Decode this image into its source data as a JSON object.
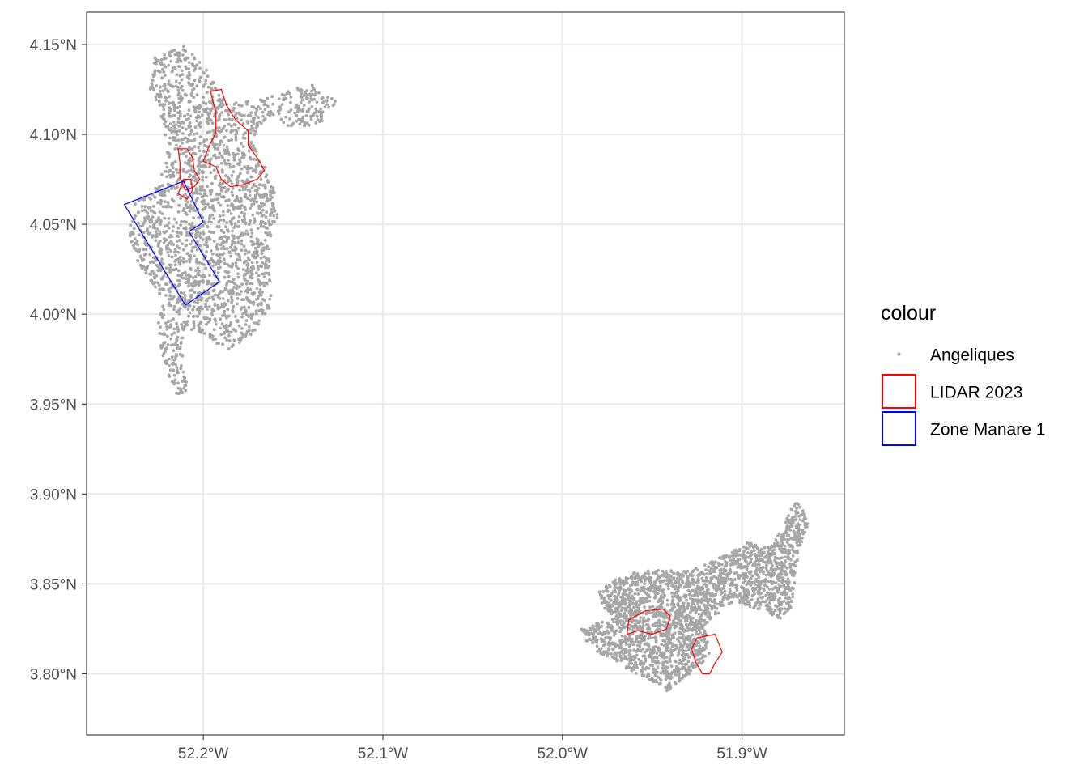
{
  "colors": {
    "points": "#a6a6a6",
    "lidar": "#ff0000",
    "zone": "#0000ff",
    "grid": "#ebebeb",
    "axis_text": "#4d4d4d"
  },
  "chart_data": {
    "type": "scatter",
    "subtype": "map",
    "grid": true,
    "legend_position": "right",
    "xlim": [
      -52.265,
      -51.843
    ],
    "ylim": [
      3.766,
      4.168
    ],
    "x_ticks": [
      {
        "value": -52.2,
        "label": "52.2°W"
      },
      {
        "value": -52.1,
        "label": "52.1°W"
      },
      {
        "value": -52.0,
        "label": "52.0°W"
      },
      {
        "value": -51.9,
        "label": "51.9°W"
      }
    ],
    "y_ticks": [
      {
        "value": 4.15,
        "label": "4.15°N"
      },
      {
        "value": 4.1,
        "label": "4.10°N"
      },
      {
        "value": 4.05,
        "label": "4.05°N"
      },
      {
        "value": 4.0,
        "label": "4.00°N"
      },
      {
        "value": 3.95,
        "label": "3.95°N"
      },
      {
        "value": 3.9,
        "label": "3.90°N"
      },
      {
        "value": 3.85,
        "label": "3.85°N"
      },
      {
        "value": 3.8,
        "label": "3.80°N"
      }
    ],
    "legend": {
      "title": "colour",
      "items": [
        {
          "label": "Angeliques",
          "kind": "point"
        },
        {
          "label": "LIDAR 2023",
          "kind": "red-outline"
        },
        {
          "label": "Zone Manare 1",
          "kind": "blue-outline"
        }
      ]
    },
    "series": [
      {
        "name": "Angeliques",
        "kind": "points",
        "clusters": [
          {
            "outline": [
              [
                -52.228,
                4.142
              ],
              [
                -52.212,
                4.15
              ],
              [
                -52.198,
                4.137
              ],
              [
                -52.19,
                4.12
              ],
              [
                -52.178,
                4.118
              ],
              [
                -52.16,
                4.122
              ],
              [
                -52.14,
                4.128
              ],
              [
                -52.125,
                4.118
              ],
              [
                -52.135,
                4.106
              ],
              [
                -52.15,
                4.103
              ],
              [
                -52.163,
                4.11
              ],
              [
                -52.172,
                4.098
              ],
              [
                -52.166,
                4.083
              ],
              [
                -52.16,
                4.068
              ],
              [
                -52.158,
                4.055
              ],
              [
                -52.163,
                4.04
              ],
              [
                -52.163,
                4.02
              ],
              [
                -52.162,
                4.005
              ],
              [
                -52.172,
                3.99
              ],
              [
                -52.185,
                3.98
              ],
              [
                -52.195,
                3.985
              ],
              [
                -52.208,
                3.992
              ],
              [
                -52.212,
                3.975
              ],
              [
                -52.208,
                3.958
              ],
              [
                -52.214,
                3.954
              ],
              [
                -52.218,
                3.962
              ],
              [
                -52.222,
                3.975
              ],
              [
                -52.226,
                3.992
              ],
              [
                -52.222,
                4.008
              ],
              [
                -52.236,
                4.027
              ],
              [
                -52.242,
                4.045
              ],
              [
                -52.238,
                4.062
              ],
              [
                -52.225,
                4.072
              ],
              [
                -52.22,
                4.088
              ],
              [
                -52.222,
                4.106
              ],
              [
                -52.23,
                4.125
              ]
            ],
            "count": 2400
          },
          {
            "outline": [
              [
                -51.972,
                3.852
              ],
              [
                -51.955,
                3.858
              ],
              [
                -51.93,
                3.857
              ],
              [
                -51.91,
                3.866
              ],
              [
                -51.897,
                3.873
              ],
              [
                -51.884,
                3.87
              ],
              [
                -51.878,
                3.88
              ],
              [
                -51.87,
                3.897
              ],
              [
                -51.862,
                3.885
              ],
              [
                -51.868,
                3.87
              ],
              [
                -51.87,
                3.857
              ],
              [
                -51.872,
                3.838
              ],
              [
                -51.878,
                3.83
              ],
              [
                -51.888,
                3.835
              ],
              [
                -51.905,
                3.84
              ],
              [
                -51.92,
                3.828
              ],
              [
                -51.918,
                3.81
              ],
              [
                -51.928,
                3.8
              ],
              [
                -51.942,
                3.79
              ],
              [
                -51.952,
                3.796
              ],
              [
                -51.968,
                3.805
              ],
              [
                -51.985,
                3.815
              ],
              [
                -51.99,
                3.825
              ],
              [
                -51.975,
                3.83
              ],
              [
                -51.98,
                3.845
              ]
            ],
            "count": 2400
          }
        ]
      },
      {
        "name": "LIDAR 2023",
        "kind": "polygons",
        "polygons": [
          [
            [
              -52.196,
              4.124
            ],
            [
              -52.19,
              4.125
            ],
            [
              -52.187,
              4.116
            ],
            [
              -52.182,
              4.108
            ],
            [
              -52.175,
              4.102
            ],
            [
              -52.175,
              4.094
            ],
            [
              -52.17,
              4.087
            ],
            [
              -52.166,
              4.08
            ],
            [
              -52.17,
              4.075
            ],
            [
              -52.178,
              4.072
            ],
            [
              -52.185,
              4.071
            ],
            [
              -52.19,
              4.075
            ],
            [
              -52.193,
              4.082
            ],
            [
              -52.2,
              4.085
            ],
            [
              -52.197,
              4.093
            ],
            [
              -52.193,
              4.101
            ],
            [
              -52.193,
              4.112
            ]
          ],
          [
            [
              -52.214,
              4.092
            ],
            [
              -52.209,
              4.092
            ],
            [
              -52.206,
              4.087
            ],
            [
              -52.205,
              4.08
            ],
            [
              -52.202,
              4.075
            ],
            [
              -52.205,
              4.071
            ],
            [
              -52.21,
              4.069
            ],
            [
              -52.213,
              4.076
            ],
            [
              -52.213,
              4.084
            ]
          ],
          [
            [
              -52.211,
              4.075
            ],
            [
              -52.207,
              4.075
            ],
            [
              -52.206,
              4.069
            ],
            [
              -52.209,
              4.064
            ],
            [
              -52.214,
              4.067
            ]
          ],
          [
            [
              -51.963,
              3.83
            ],
            [
              -51.954,
              3.835
            ],
            [
              -51.944,
              3.836
            ],
            [
              -51.94,
              3.832
            ],
            [
              -51.942,
              3.825
            ],
            [
              -51.95,
              3.822
            ],
            [
              -51.958,
              3.824
            ],
            [
              -51.964,
              3.822
            ]
          ],
          [
            [
              -51.925,
              3.82
            ],
            [
              -51.915,
              3.822
            ],
            [
              -51.911,
              3.812
            ],
            [
              -51.915,
              3.806
            ],
            [
              -51.918,
              3.8
            ],
            [
              -51.922,
              3.8
            ],
            [
              -51.926,
              3.807
            ],
            [
              -51.928,
              3.814
            ]
          ]
        ]
      },
      {
        "name": "Zone Manare 1",
        "kind": "polygons",
        "polygons": [
          [
            [
              -52.244,
              4.061
            ],
            [
              -52.211,
              4.074
            ],
            [
              -52.2,
              4.051
            ],
            [
              -52.208,
              4.046
            ],
            [
              -52.191,
              4.018
            ],
            [
              -52.21,
              4.005
            ]
          ]
        ]
      }
    ]
  }
}
